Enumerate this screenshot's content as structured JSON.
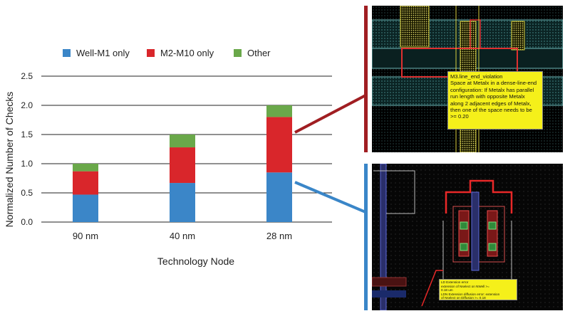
{
  "chart_data": {
    "type": "bar",
    "stacked": true,
    "categories": [
      "90 nm",
      "40 nm",
      "28 nm"
    ],
    "series": [
      {
        "name": "Well-M1 only",
        "color": "#3b86c8",
        "values": [
          0.47,
          0.67,
          0.85
        ]
      },
      {
        "name": "M2-M10 only",
        "color": "#d9262b",
        "values": [
          0.4,
          0.61,
          0.95
        ]
      },
      {
        "name": "Other",
        "color": "#6aa84a",
        "values": [
          0.13,
          0.22,
          0.2
        ]
      }
    ],
    "xlabel": "Technology Node",
    "ylabel": "Normalized Number of Checks",
    "ylim": [
      0,
      2.5
    ],
    "yticks": [
      "0.0",
      "0.5",
      "1.0",
      "1.5",
      "2.0",
      "2.5"
    ],
    "grid": true,
    "legend": "top"
  },
  "connectors": {
    "top_color": "#a01e22",
    "bottom_color": "#3a86c8"
  },
  "layout_top": {
    "callout_lines": [
      "M3.line_end_violation",
      "Space at Metalx in a dense-line-end",
      "configuration: If Metalx has parallel",
      "run length with opposite Metalx",
      "along 2 adjacent edges of Metalx,",
      "then one of the space needs to be",
      ">= 0.20"
    ]
  },
  "layout_bottom": {
    "callout_lines": [
      "LD Extension error",
      "extension of Nselect on NWell >=",
      "0.18 um",
      "LDN Extension diffusion error: extension",
      "of Nselect on Diffusion >= 0.18"
    ]
  }
}
